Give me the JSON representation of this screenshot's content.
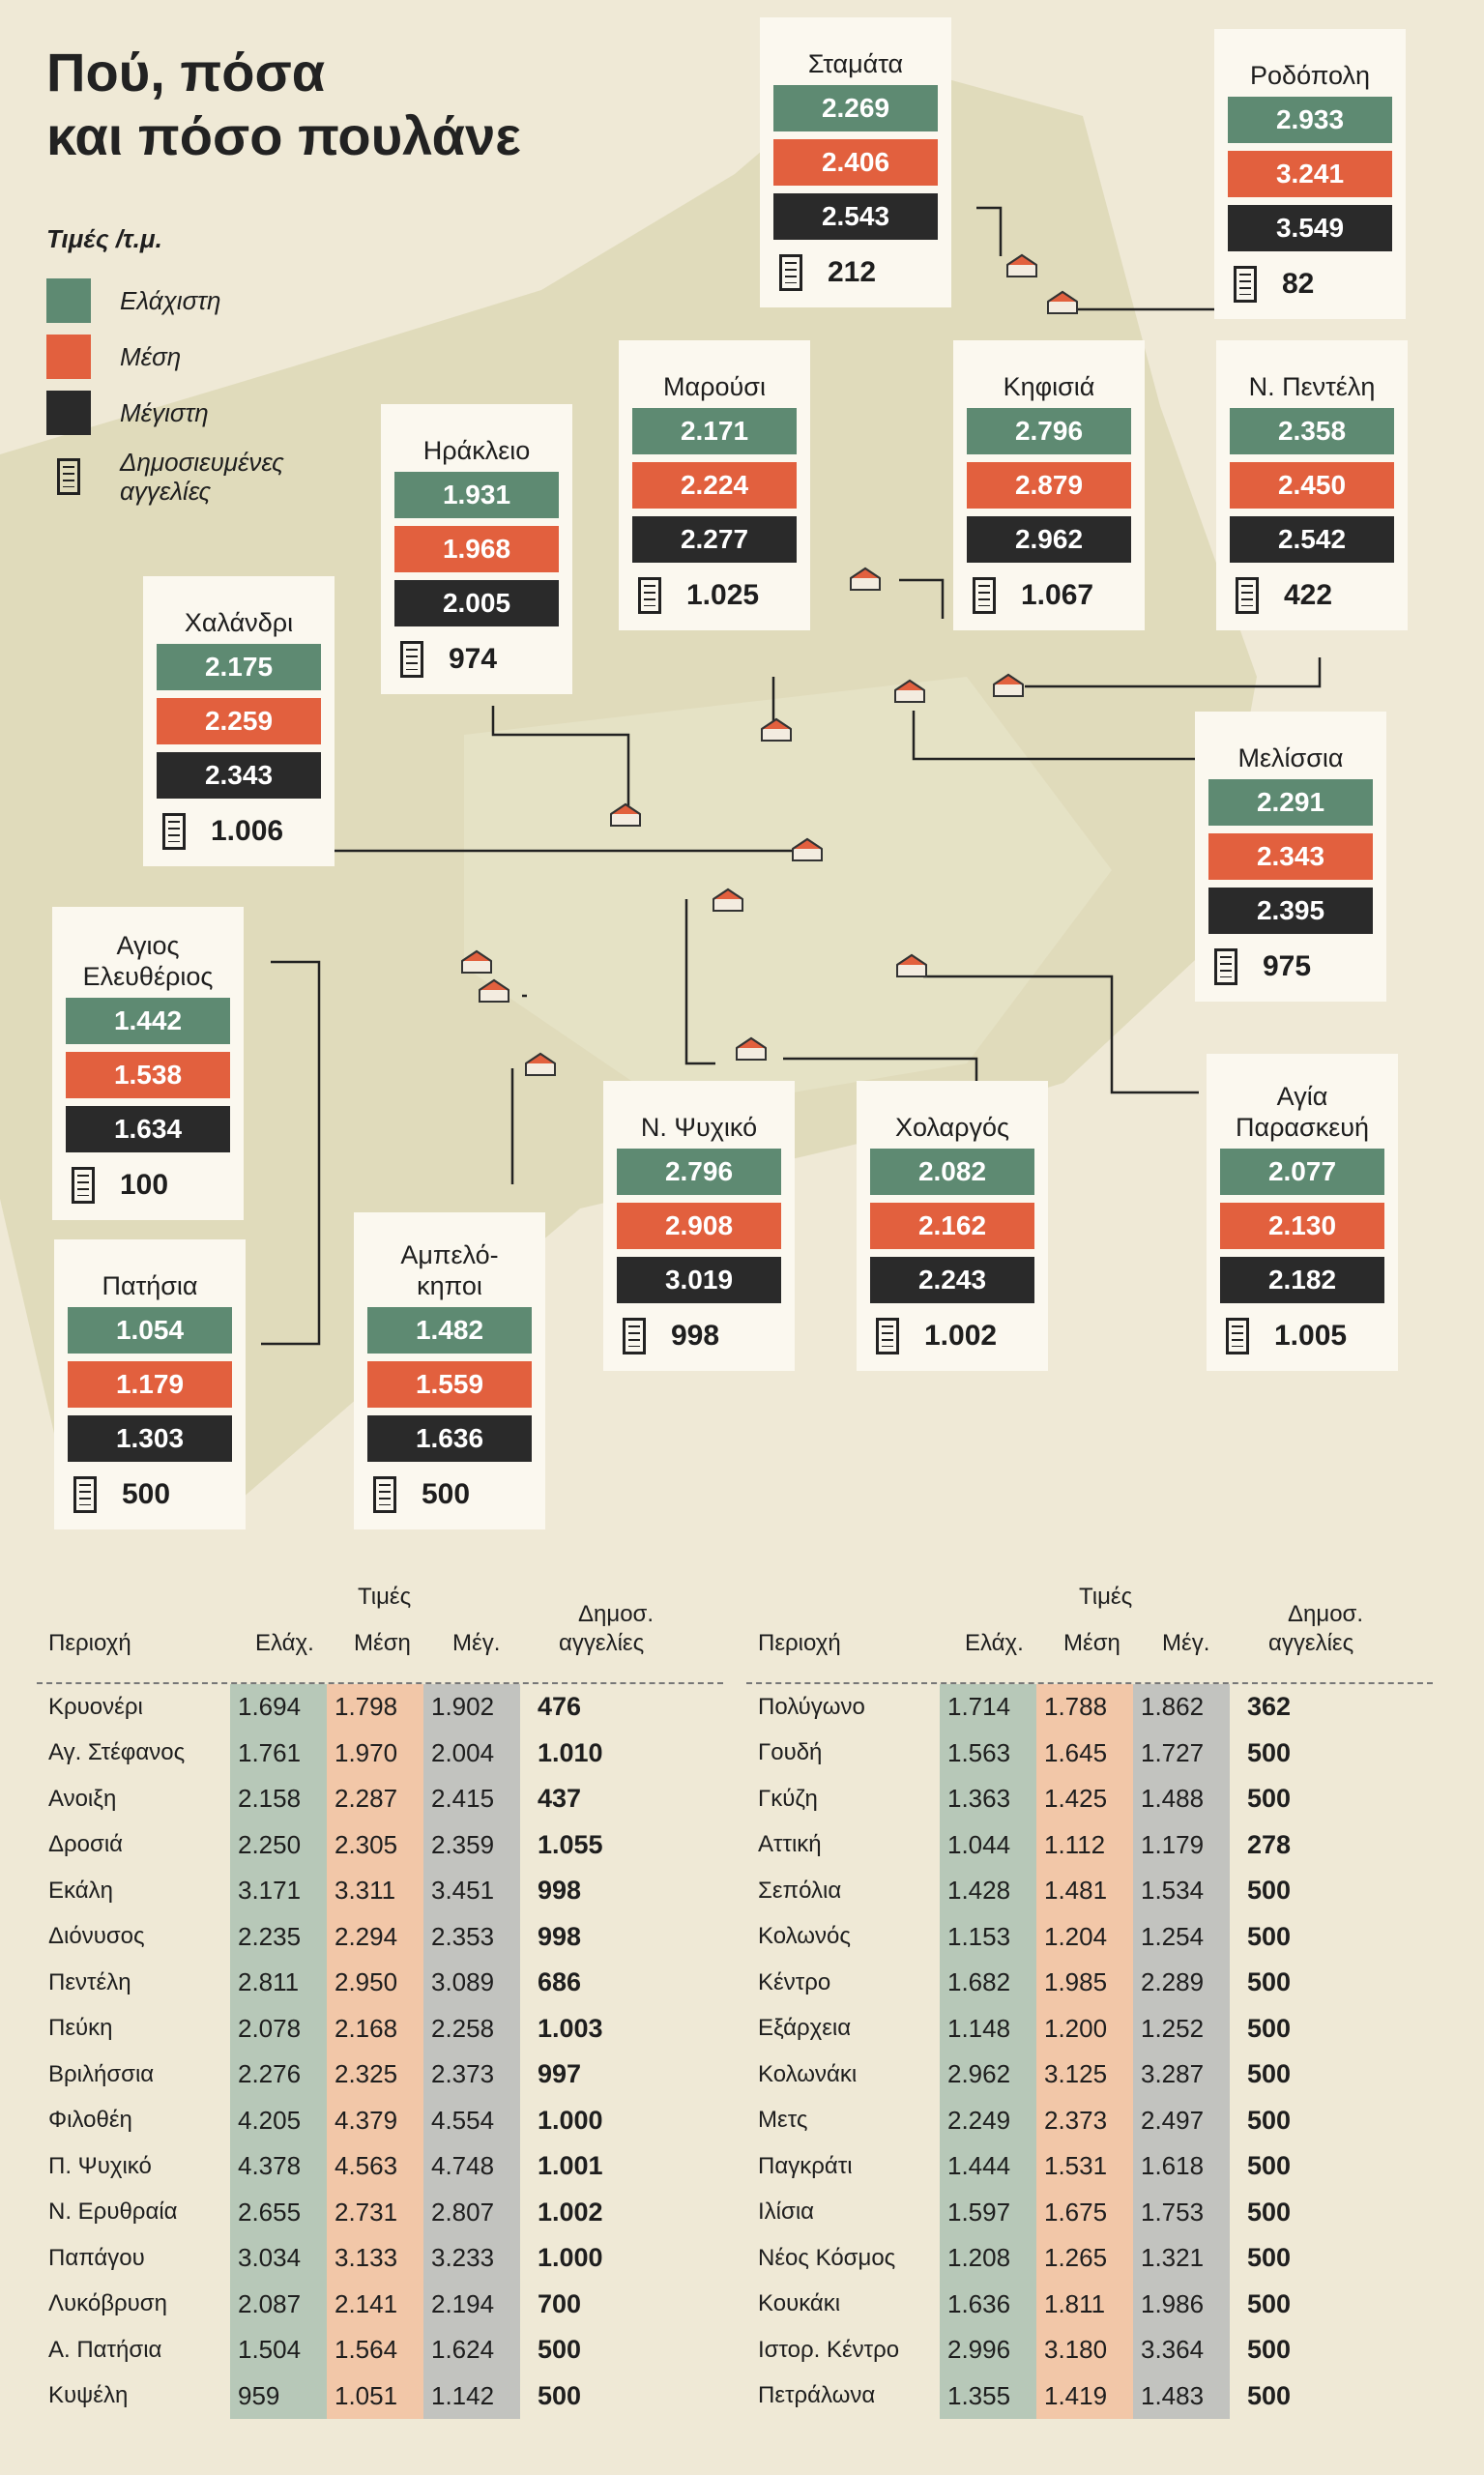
{
  "title_line1": "Πού, πόσα",
  "title_line2": "και πόσο πουλάνε",
  "legend": {
    "heading": "Τιμές /τ.μ.",
    "min": "Ελάχιστη",
    "avg": "Μέση",
    "max": "Μέγιστη",
    "ads_line1": "Δημοσιευμένες",
    "ads_line2": "αγγελίες",
    "colors": {
      "min": "#5e8a72",
      "avg": "#e2603e",
      "max": "#2a2a2a"
    }
  },
  "map_areas": [
    {
      "name": "Σταμάτα",
      "min": "2.269",
      "avg": "2.406",
      "max": "2.543",
      "ads": "212"
    },
    {
      "name": "Ροδόπολη",
      "min": "2.933",
      "avg": "3.241",
      "max": "3.549",
      "ads": "82"
    },
    {
      "name": "Μαρούσι",
      "min": "2.171",
      "avg": "2.224",
      "max": "2.277",
      "ads": "1.025"
    },
    {
      "name": "Κηφισιά",
      "min": "2.796",
      "avg": "2.879",
      "max": "2.962",
      "ads": "1.067"
    },
    {
      "name": "Ν. Πεντέλη",
      "min": "2.358",
      "avg": "2.450",
      "max": "2.542",
      "ads": "422"
    },
    {
      "name": "Ηράκλειο",
      "min": "1.931",
      "avg": "1.968",
      "max": "2.005",
      "ads": "974"
    },
    {
      "name": "Χαλάνδρι",
      "min": "2.175",
      "avg": "2.259",
      "max": "2.343",
      "ads": "1.006"
    },
    {
      "name": "Μελίσσια",
      "min": "2.291",
      "avg": "2.343",
      "max": "2.395",
      "ads": "975"
    },
    {
      "name_line1": "Αγιος",
      "name_line2": "Ελευθέριος",
      "min": "1.442",
      "avg": "1.538",
      "max": "1.634",
      "ads": "100"
    },
    {
      "name": "Πατήσια",
      "min": "1.054",
      "avg": "1.179",
      "max": "1.303",
      "ads": "500"
    },
    {
      "name_line1": "Αμπελό-",
      "name_line2": "κηποι",
      "min": "1.482",
      "avg": "1.559",
      "max": "1.636",
      "ads": "500"
    },
    {
      "name": "Ν. Ψυχικό",
      "min": "2.796",
      "avg": "2.908",
      "max": "3.019",
      "ads": "998"
    },
    {
      "name": "Χολαργός",
      "min": "2.082",
      "avg": "2.162",
      "max": "2.243",
      "ads": "1.002"
    },
    {
      "name_line1": "Αγία",
      "name_line2": "Παρασκευή",
      "min": "2.077",
      "avg": "2.130",
      "max": "2.182",
      "ads": "1.005"
    }
  ],
  "table_headers": {
    "area": "Περιοχή",
    "prices": "Τιμές",
    "min": "Ελάχ.",
    "avg": "Μέση",
    "max": "Μέγ.",
    "ads_line1": "Δημοσ.",
    "ads_line2": "αγγελίες"
  },
  "table_left": [
    {
      "area": "Κρυονέρι",
      "min": "1.694",
      "avg": "1.798",
      "max": "1.902",
      "ads": "476"
    },
    {
      "area": "Αγ. Στέφανος",
      "min": "1.761",
      "avg": "1.970",
      "max": "2.004",
      "ads": "1.010"
    },
    {
      "area": "Ανοιξη",
      "min": "2.158",
      "avg": "2.287",
      "max": "2.415",
      "ads": "437"
    },
    {
      "area": "Δροσιά",
      "min": "2.250",
      "avg": "2.305",
      "max": "2.359",
      "ads": "1.055"
    },
    {
      "area": "Εκάλη",
      "min": "3.171",
      "avg": "3.311",
      "max": "3.451",
      "ads": "998"
    },
    {
      "area": "Διόνυσος",
      "min": "2.235",
      "avg": "2.294",
      "max": "2.353",
      "ads": "998"
    },
    {
      "area": "Πεντέλη",
      "min": "2.811",
      "avg": "2.950",
      "max": "3.089",
      "ads": "686"
    },
    {
      "area": "Πεύκη",
      "min": "2.078",
      "avg": "2.168",
      "max": "2.258",
      "ads": "1.003"
    },
    {
      "area": "Βριλήσσια",
      "min": "2.276",
      "avg": "2.325",
      "max": "2.373",
      "ads": "997"
    },
    {
      "area": "Φιλοθέη",
      "min": "4.205",
      "avg": "4.379",
      "max": "4.554",
      "ads": "1.000"
    },
    {
      "area": "Π. Ψυχικό",
      "min": "4.378",
      "avg": "4.563",
      "max": "4.748",
      "ads": "1.001"
    },
    {
      "area": "Ν. Ερυθραία",
      "min": "2.655",
      "avg": "2.731",
      "max": "2.807",
      "ads": "1.002"
    },
    {
      "area": "Παπάγου",
      "min": "3.034",
      "avg": "3.133",
      "max": "3.233",
      "ads": "1.000"
    },
    {
      "area": "Λυκόβρυση",
      "min": "2.087",
      "avg": "2.141",
      "max": "2.194",
      "ads": "700"
    },
    {
      "area": "Α. Πατήσια",
      "min": "1.504",
      "avg": "1.564",
      "max": "1.624",
      "ads": "500"
    },
    {
      "area": "Κυψέλη",
      "min": "959",
      "avg": "1.051",
      "max": "1.142",
      "ads": "500"
    }
  ],
  "table_right": [
    {
      "area": "Πολύγωνο",
      "min": "1.714",
      "avg": "1.788",
      "max": "1.862",
      "ads": "362"
    },
    {
      "area": "Γουδή",
      "min": "1.563",
      "avg": "1.645",
      "max": "1.727",
      "ads": "500"
    },
    {
      "area": "Γκύζη",
      "min": "1.363",
      "avg": "1.425",
      "max": "1.488",
      "ads": "500"
    },
    {
      "area": "Αττική",
      "min": "1.044",
      "avg": "1.112",
      "max": "1.179",
      "ads": "278"
    },
    {
      "area": "Σεπόλια",
      "min": "1.428",
      "avg": "1.481",
      "max": "1.534",
      "ads": "500"
    },
    {
      "area": "Κολωνός",
      "min": "1.153",
      "avg": "1.204",
      "max": "1.254",
      "ads": "500"
    },
    {
      "area": "Κέντρο",
      "min": "1.682",
      "avg": "1.985",
      "max": "2.289",
      "ads": "500"
    },
    {
      "area": "Εξάρχεια",
      "min": "1.148",
      "avg": "1.200",
      "max": "1.252",
      "ads": "500"
    },
    {
      "area": "Κολωνάκι",
      "min": "2.962",
      "avg": "3.125",
      "max": "3.287",
      "ads": "500"
    },
    {
      "area": "Μετς",
      "min": "2.249",
      "avg": "2.373",
      "max": "2.497",
      "ads": "500"
    },
    {
      "area": "Παγκράτι",
      "min": "1.444",
      "avg": "1.531",
      "max": "1.618",
      "ads": "500"
    },
    {
      "area": "Ιλίσια",
      "min": "1.597",
      "avg": "1.675",
      "max": "1.753",
      "ads": "500"
    },
    {
      "area": "Νέος Κόσμος",
      "min": "1.208",
      "avg": "1.265",
      "max": "1.321",
      "ads": "500"
    },
    {
      "area": "Κουκάκι",
      "min": "1.636",
      "avg": "1.811",
      "max": "1.986",
      "ads": "500"
    },
    {
      "area": "Ιστορ. Κέντρο",
      "min": "2.996",
      "avg": "3.180",
      "max": "3.364",
      "ads": "500"
    },
    {
      "area": "Πετράλωνα",
      "min": "1.355",
      "avg": "1.419",
      "max": "1.483",
      "ads": "500"
    }
  ]
}
